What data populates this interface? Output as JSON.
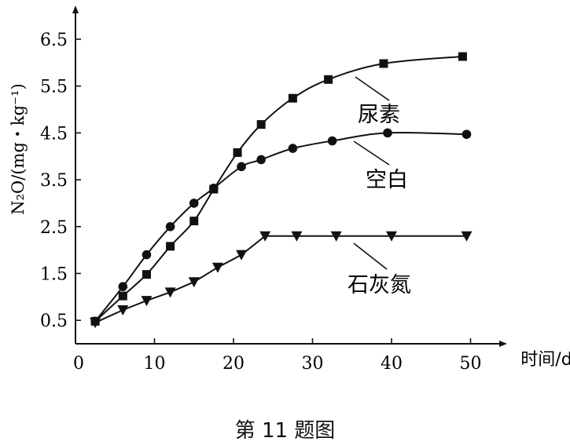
{
  "chart_data": {
    "type": "line",
    "xlabel": "时间/d",
    "ylabel": "N₂O/(mg・kg⁻¹)",
    "xlim": [
      0,
      50
    ],
    "ylim": [
      0,
      7
    ],
    "xticks": [
      0,
      10,
      20,
      30,
      40,
      50
    ],
    "yticks": [
      0.5,
      1.5,
      2.5,
      3.5,
      4.5,
      5.5,
      6.5
    ],
    "xtick_labels": [
      "0",
      "10",
      "20",
      "30",
      "40",
      "50"
    ],
    "ytick_labels": [
      "0.5",
      "1.5",
      "2.5",
      "3.5",
      "4.5",
      "5.5",
      "6.5"
    ],
    "grid": false,
    "legend": "inline labels",
    "series": [
      {
        "name": "尿素",
        "marker": "square",
        "x": [
          2.5,
          6,
          9,
          12,
          15,
          17.5,
          20.5,
          23.5,
          27.5,
          32,
          39,
          49
        ],
        "y": [
          0.48,
          1.02,
          1.48,
          2.08,
          2.62,
          3.3,
          4.08,
          4.68,
          5.24,
          5.64,
          5.98,
          6.13
        ]
      },
      {
        "name": "空白",
        "marker": "circle",
        "x": [
          2.5,
          6,
          9,
          12,
          15,
          17.5,
          21,
          23.5,
          27.5,
          32.5,
          39.5,
          49.5
        ],
        "y": [
          0.48,
          1.22,
          1.9,
          2.5,
          3.0,
          3.32,
          3.78,
          3.93,
          4.17,
          4.33,
          4.5,
          4.47
        ]
      },
      {
        "name": "石灰氮",
        "marker": "triangle-down",
        "x": [
          2.5,
          6,
          9,
          12,
          15,
          18,
          21,
          24,
          28,
          33,
          40,
          49.5
        ],
        "y": [
          0.45,
          0.72,
          0.92,
          1.1,
          1.32,
          1.63,
          1.9,
          2.3,
          2.3,
          2.3,
          2.3,
          2.3
        ]
      }
    ]
  },
  "caption": "第 11 题图"
}
